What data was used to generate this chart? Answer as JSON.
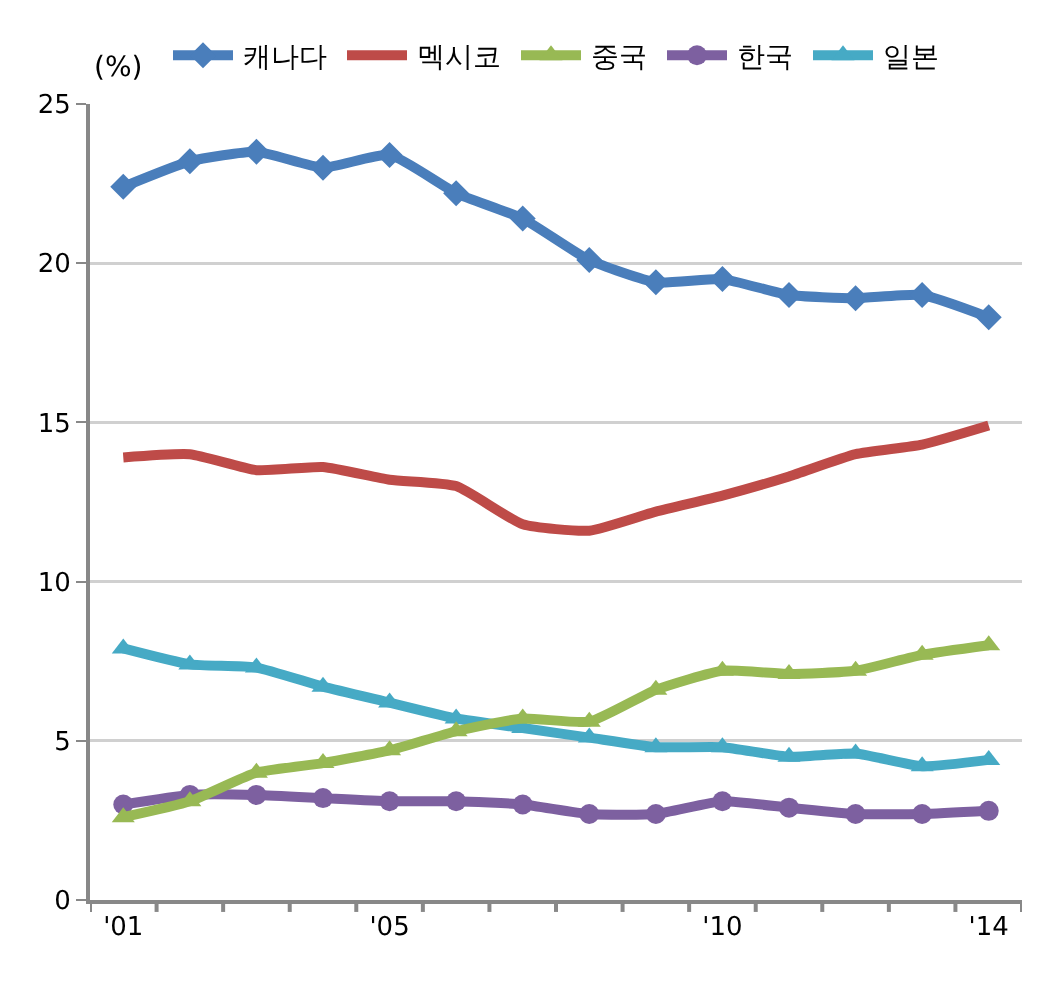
{
  "chart_data": {
    "type": "line",
    "ylabel": "(%)",
    "categories": [
      "'01",
      null,
      null,
      null,
      "'05",
      null,
      null,
      null,
      null,
      "'10",
      null,
      null,
      null,
      "'14"
    ],
    "ylim": [
      0,
      25
    ],
    "yticks": [
      0,
      5,
      10,
      15,
      20,
      25
    ],
    "grid": "y",
    "legend": "top",
    "line_style": "solid",
    "series": [
      {
        "name": "캐나다",
        "color": "#4a7ebb",
        "marker": "diamond",
        "values": [
          22.4,
          23.2,
          23.5,
          23.0,
          23.4,
          22.2,
          21.4,
          20.1,
          19.4,
          19.5,
          19.0,
          18.9,
          19.0,
          18.3
        ]
      },
      {
        "name": "멕시코",
        "color": "#be4b48",
        "marker": "none",
        "values": [
          13.9,
          14.0,
          13.5,
          13.6,
          13.2,
          13.0,
          11.8,
          11.6,
          12.2,
          12.7,
          13.3,
          14.0,
          14.3,
          14.9
        ]
      },
      {
        "name": "중국",
        "color": "#98b954",
        "marker": "triangle",
        "values": [
          2.6,
          3.1,
          4.0,
          4.3,
          4.7,
          5.3,
          5.7,
          5.6,
          6.6,
          7.2,
          7.1,
          7.2,
          7.7,
          8.0
        ]
      },
      {
        "name": "한국",
        "color": "#7d60a0",
        "marker": "circle",
        "values": [
          3.0,
          3.3,
          3.3,
          3.2,
          3.1,
          3.1,
          3.0,
          2.7,
          2.7,
          3.1,
          2.9,
          2.7,
          2.7,
          2.8
        ]
      },
      {
        "name": "일본",
        "color": "#46aac5",
        "marker": "triangle",
        "values": [
          7.9,
          7.4,
          7.3,
          6.7,
          6.2,
          5.7,
          5.4,
          5.1,
          4.8,
          4.8,
          4.5,
          4.6,
          4.2,
          4.4
        ]
      }
    ]
  }
}
